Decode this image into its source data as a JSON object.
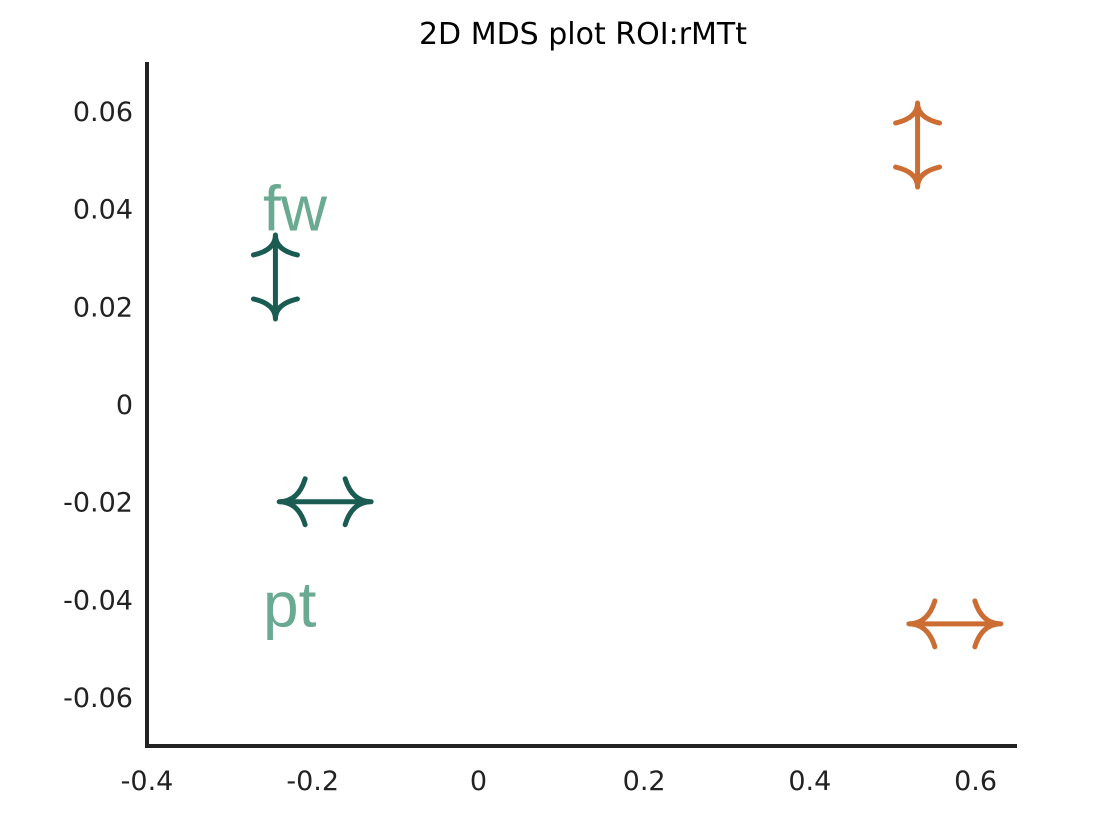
{
  "chart_data": {
    "type": "scatter",
    "title": "2D MDS plot ROI:rMTt",
    "xlabel": "",
    "ylabel": "",
    "xlim": [
      -0.4,
      0.65
    ],
    "ylim": [
      -0.07,
      0.07
    ],
    "grid": false,
    "legend": "none",
    "x_ticks": [
      {
        "value": -0.4,
        "label": "-0.4"
      },
      {
        "value": -0.2,
        "label": "-0.2"
      },
      {
        "value": 0,
        "label": "0"
      },
      {
        "value": 0.2,
        "label": "0.2"
      },
      {
        "value": 0.4,
        "label": "0.4"
      },
      {
        "value": 0.6,
        "label": "0.6"
      }
    ],
    "y_ticks": [
      {
        "value": 0.06,
        "label": "0.06"
      },
      {
        "value": 0.04,
        "label": "0.04"
      },
      {
        "value": 0.02,
        "label": "0.02"
      },
      {
        "value": 0,
        "label": "0"
      },
      {
        "value": -0.02,
        "label": "-0.02"
      },
      {
        "value": -0.04,
        "label": "-0.04"
      },
      {
        "value": -0.06,
        "label": "-0.06"
      }
    ],
    "points": [
      {
        "x": -0.245,
        "y": 0.026,
        "marker": "vertical-double-arrow",
        "color": "#1a5c52"
      },
      {
        "x": -0.185,
        "y": -0.02,
        "marker": "horizontal-double-arrow",
        "color": "#1a5c52"
      },
      {
        "x": 0.53,
        "y": 0.053,
        "marker": "vertical-double-arrow",
        "color": "#cc6d34"
      },
      {
        "x": 0.575,
        "y": -0.045,
        "marker": "horizontal-double-arrow",
        "color": "#cc6d34"
      }
    ],
    "annotations": [
      {
        "text": "fw",
        "x": -0.26,
        "y": 0.04,
        "color": "#6aaa92"
      },
      {
        "text": "pt",
        "x": -0.26,
        "y": -0.041,
        "color": "#6aaa92"
      }
    ]
  }
}
